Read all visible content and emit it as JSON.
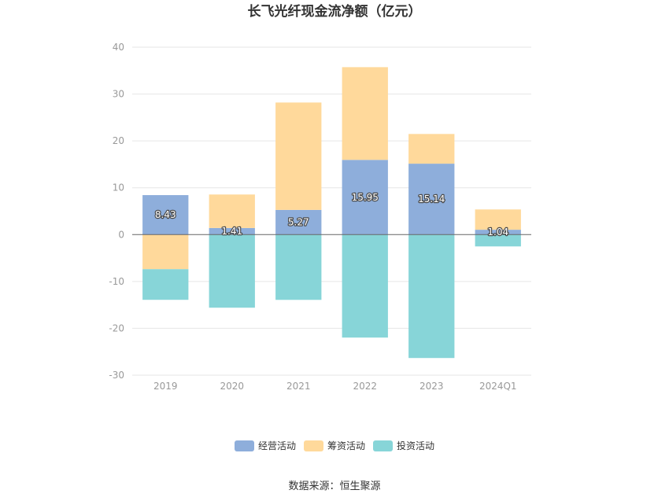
{
  "chart_data": {
    "type": "bar",
    "stacked": true,
    "title": "长飞光纤现金流净额（亿元）",
    "categories": [
      "2019",
      "2020",
      "2021",
      "2022",
      "2023",
      "2024Q1"
    ],
    "series": [
      {
        "name": "经营活动",
        "color": "#8EAEDB",
        "values": [
          8.43,
          1.41,
          5.27,
          15.95,
          15.14,
          1.04
        ],
        "data_labels": true
      },
      {
        "name": "筹资活动",
        "color": "#FFD99B",
        "values": [
          -7.38,
          7.15,
          22.92,
          19.79,
          6.34,
          4.33
        ],
        "data_labels": false
      },
      {
        "name": "投资活动",
        "color": "#87D5D8",
        "values": [
          -6.54,
          -15.6,
          -13.93,
          -21.98,
          -26.34,
          -2.52
        ],
        "data_labels": false
      }
    ],
    "ylim": [
      -30,
      40
    ],
    "yticks": [
      40,
      30,
      20,
      10,
      0,
      -10,
      -20,
      -30
    ],
    "grid": true,
    "legend": "bottom"
  },
  "source": "数据来源：恒生聚源"
}
